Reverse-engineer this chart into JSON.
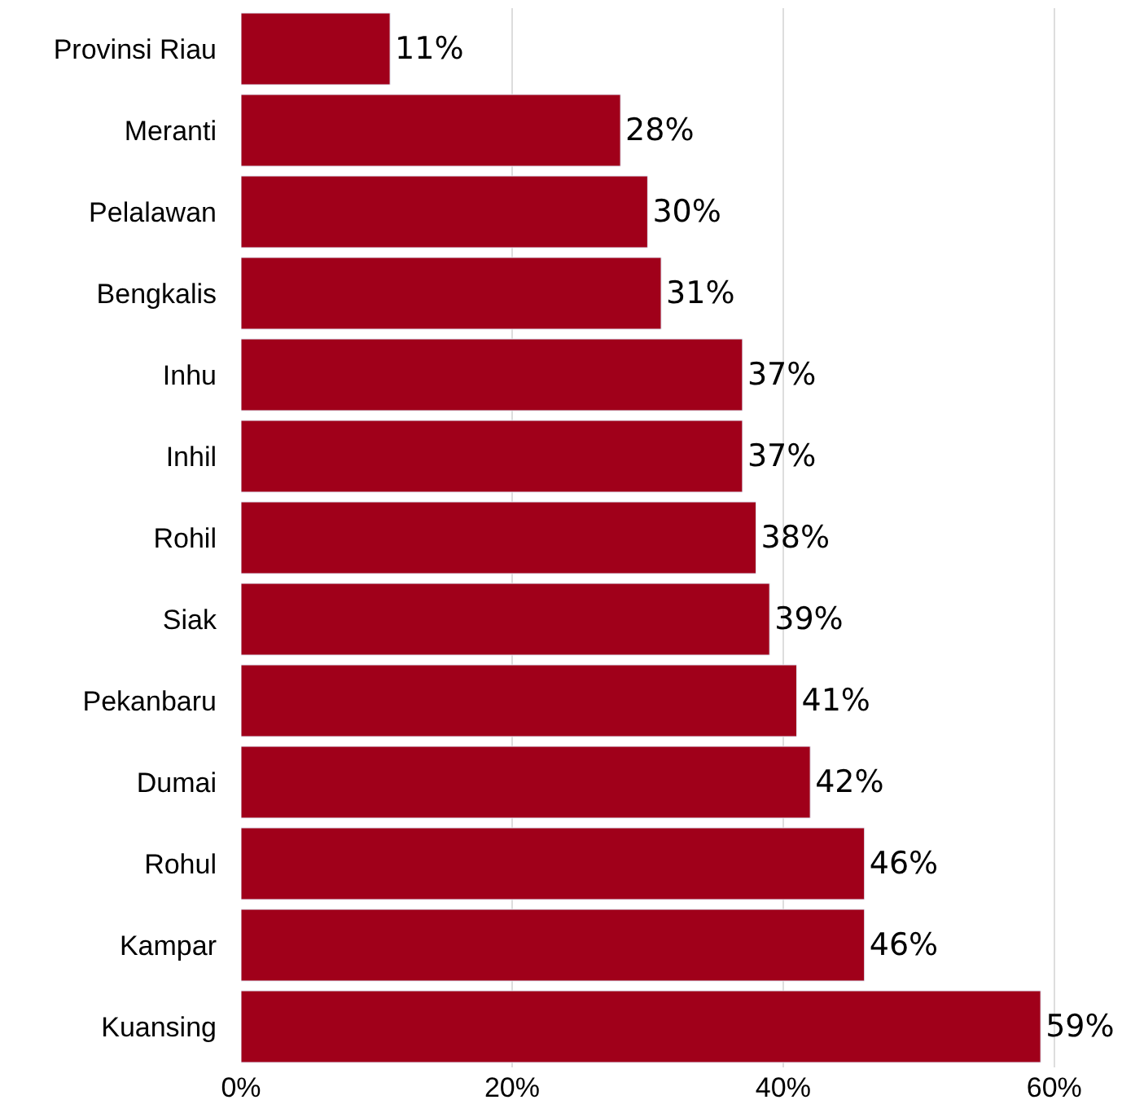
{
  "chart_data": {
    "type": "bar",
    "orientation": "horizontal",
    "categories": [
      "Provinsi Riau",
      "Meranti",
      "Pelalawan",
      "Bengkalis",
      "Inhu",
      "Inhil",
      "Rohil",
      "Siak",
      "Pekanbaru",
      "Dumai",
      "Rohul",
      "Kampar",
      "Kuansing"
    ],
    "values": [
      11,
      28,
      30,
      31,
      37,
      37,
      38,
      39,
      41,
      42,
      46,
      46,
      59
    ],
    "value_labels": [
      "11%",
      "28%",
      "30%",
      "31%",
      "37%",
      "37%",
      "38%",
      "39%",
      "41%",
      "42%",
      "46%",
      "46%",
      "59%"
    ],
    "color": "#a0001a",
    "xlim": [
      0,
      65
    ],
    "xticks": [
      {
        "value": 0,
        "label": "0%"
      },
      {
        "value": 20,
        "label": "20%"
      },
      {
        "value": 40,
        "label": "40%"
      },
      {
        "value": 60,
        "label": "60%"
      }
    ],
    "grid": "x",
    "legend": false
  }
}
